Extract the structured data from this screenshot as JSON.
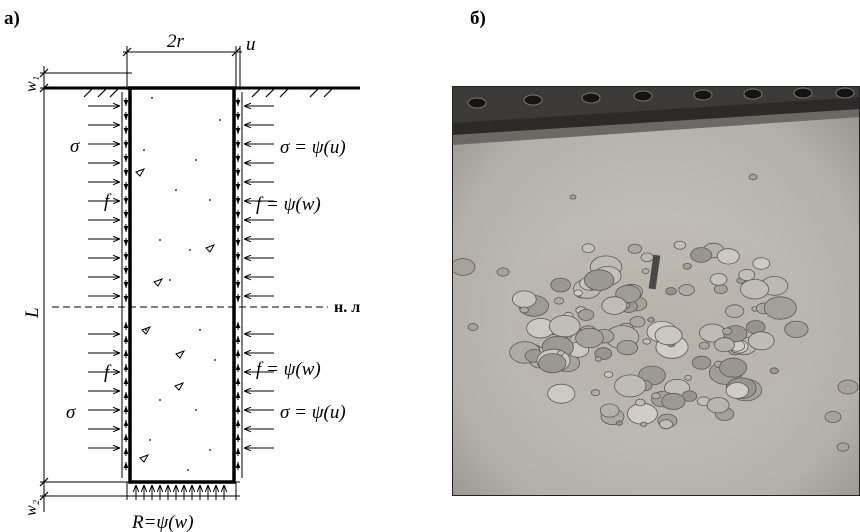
{
  "panels": {
    "a": {
      "label": "а)"
    },
    "b": {
      "label": "б)"
    }
  },
  "diagram": {
    "dim_diameter": "2r",
    "dim_u": "u",
    "dim_w1": "w₁",
    "dim_w2": "w₂",
    "dim_L": "L",
    "neutral_line": "н. л",
    "sigma_left": "σ",
    "f_left": "f",
    "sigma_right": "σ = ψ(u)",
    "f_right": "f = ψ(w)",
    "base_reaction": "R=ψ(w)"
  },
  "photo": {
    "description_icon": "soil-pile-photo"
  }
}
